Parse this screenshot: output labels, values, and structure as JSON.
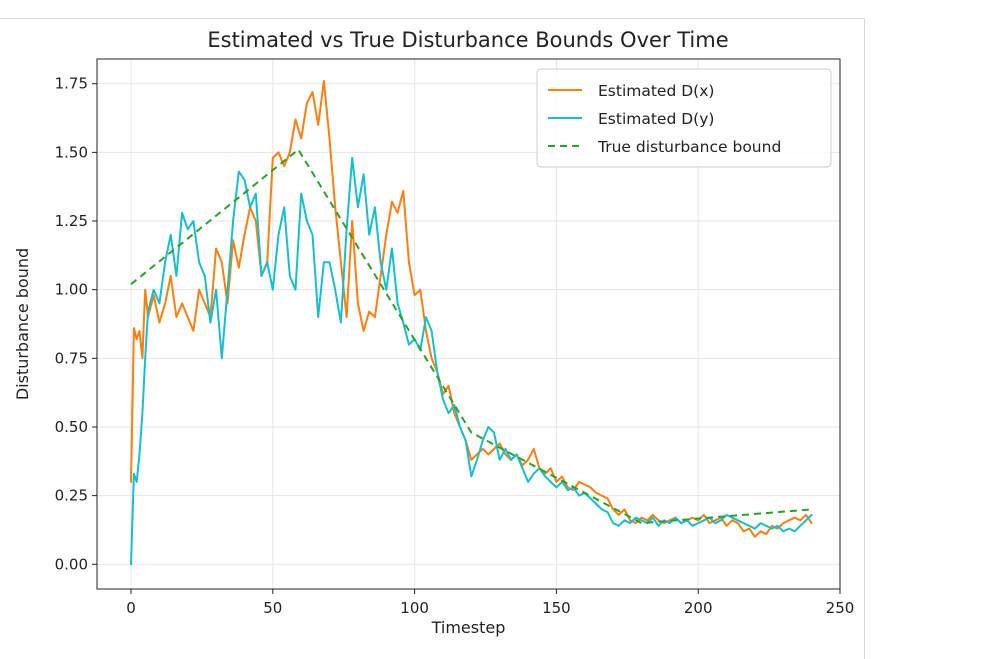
{
  "chart_data": {
    "type": "line",
    "title": "Estimated vs True Disturbance Bounds Over Time",
    "xlabel": "Timestep",
    "ylabel": "Disturbance bound",
    "xlim": [
      -12,
      250
    ],
    "ylim": [
      -0.09,
      1.84
    ],
    "xticks": [
      0,
      50,
      100,
      150,
      200,
      250
    ],
    "yticks": [
      0.0,
      0.25,
      0.5,
      0.75,
      1.0,
      1.25,
      1.5,
      1.75
    ],
    "ytick_labels": [
      "0.00",
      "0.25",
      "0.50",
      "0.75",
      "1.00",
      "1.25",
      "1.50",
      "1.75"
    ],
    "grid": true,
    "legend_position": "top-right",
    "series": [
      {
        "name": "Estimated D(x)",
        "color": "#ff7f0e",
        "style": "solid",
        "x": [
          0,
          1,
          2,
          3,
          4,
          5,
          6,
          8,
          10,
          12,
          14,
          16,
          18,
          20,
          22,
          24,
          26,
          28,
          30,
          32,
          34,
          36,
          38,
          40,
          42,
          44,
          46,
          48,
          50,
          52,
          54,
          56,
          58,
          60,
          62,
          64,
          66,
          68,
          70,
          72,
          74,
          76,
          78,
          80,
          82,
          84,
          86,
          88,
          90,
          92,
          94,
          96,
          98,
          100,
          102,
          104,
          106,
          108,
          110,
          112,
          114,
          116,
          118,
          120,
          122,
          124,
          126,
          128,
          130,
          132,
          134,
          136,
          138,
          140,
          142,
          144,
          146,
          148,
          150,
          152,
          154,
          156,
          158,
          160,
          162,
          164,
          166,
          168,
          170,
          172,
          174,
          176,
          178,
          180,
          182,
          184,
          186,
          188,
          190,
          192,
          194,
          196,
          198,
          200,
          202,
          204,
          206,
          208,
          210,
          212,
          214,
          216,
          218,
          220,
          222,
          224,
          226,
          228,
          230,
          232,
          234,
          236,
          238,
          240
        ],
        "y": [
          0.3,
          0.86,
          0.82,
          0.85,
          0.75,
          1.0,
          0.9,
          0.98,
          0.88,
          0.95,
          1.05,
          0.9,
          0.95,
          0.9,
          0.85,
          1.0,
          0.95,
          0.9,
          1.15,
          1.1,
          0.95,
          1.18,
          1.08,
          1.2,
          1.3,
          1.25,
          1.05,
          1.1,
          1.48,
          1.5,
          1.45,
          1.5,
          1.62,
          1.55,
          1.68,
          1.72,
          1.6,
          1.76,
          1.55,
          1.3,
          1.1,
          0.9,
          1.25,
          0.95,
          0.85,
          0.92,
          0.9,
          1.05,
          1.2,
          1.32,
          1.28,
          1.36,
          1.1,
          0.98,
          1.0,
          0.85,
          0.75,
          0.7,
          0.62,
          0.65,
          0.55,
          0.5,
          0.45,
          0.38,
          0.4,
          0.42,
          0.4,
          0.42,
          0.44,
          0.4,
          0.38,
          0.4,
          0.36,
          0.38,
          0.42,
          0.35,
          0.33,
          0.35,
          0.3,
          0.32,
          0.28,
          0.27,
          0.3,
          0.29,
          0.28,
          0.26,
          0.25,
          0.24,
          0.2,
          0.18,
          0.2,
          0.16,
          0.15,
          0.17,
          0.16,
          0.18,
          0.16,
          0.15,
          0.16,
          0.17,
          0.15,
          0.16,
          0.17,
          0.16,
          0.18,
          0.15,
          0.16,
          0.17,
          0.14,
          0.16,
          0.15,
          0.12,
          0.13,
          0.1,
          0.12,
          0.11,
          0.14,
          0.13,
          0.15,
          0.16,
          0.17,
          0.16,
          0.18,
          0.15
        ]
      },
      {
        "name": "Estimated D(y)",
        "color": "#17becf",
        "style": "solid",
        "x": [
          0,
          1,
          2,
          3,
          4,
          5,
          6,
          8,
          10,
          12,
          14,
          16,
          18,
          20,
          22,
          24,
          26,
          28,
          30,
          32,
          34,
          36,
          38,
          40,
          42,
          44,
          46,
          48,
          50,
          52,
          54,
          56,
          58,
          60,
          62,
          64,
          66,
          68,
          70,
          72,
          74,
          76,
          78,
          80,
          82,
          84,
          86,
          88,
          90,
          92,
          94,
          96,
          98,
          100,
          102,
          104,
          106,
          108,
          110,
          112,
          114,
          116,
          118,
          120,
          122,
          124,
          126,
          128,
          130,
          132,
          134,
          136,
          138,
          140,
          142,
          144,
          146,
          148,
          150,
          152,
          154,
          156,
          158,
          160,
          162,
          164,
          166,
          168,
          170,
          172,
          174,
          176,
          178,
          180,
          182,
          184,
          186,
          188,
          190,
          192,
          194,
          196,
          198,
          200,
          202,
          204,
          206,
          208,
          210,
          212,
          214,
          216,
          218,
          220,
          222,
          224,
          226,
          228,
          230,
          232,
          234,
          236,
          238,
          240
        ],
        "y": [
          0.0,
          0.33,
          0.3,
          0.4,
          0.55,
          0.75,
          0.92,
          1.0,
          0.95,
          1.1,
          1.2,
          1.05,
          1.28,
          1.22,
          1.25,
          1.1,
          1.05,
          0.88,
          1.0,
          0.75,
          1.0,
          1.25,
          1.43,
          1.4,
          1.3,
          1.35,
          1.05,
          1.1,
          1.0,
          1.2,
          1.3,
          1.05,
          1.0,
          1.35,
          1.25,
          1.2,
          0.9,
          1.1,
          1.1,
          1.0,
          0.88,
          1.22,
          1.48,
          1.3,
          1.42,
          1.2,
          1.3,
          1.1,
          1.0,
          1.15,
          0.95,
          0.88,
          0.8,
          0.82,
          0.78,
          0.9,
          0.85,
          0.7,
          0.6,
          0.55,
          0.58,
          0.5,
          0.45,
          0.32,
          0.38,
          0.45,
          0.5,
          0.48,
          0.38,
          0.42,
          0.38,
          0.4,
          0.35,
          0.3,
          0.33,
          0.35,
          0.32,
          0.3,
          0.28,
          0.3,
          0.27,
          0.28,
          0.25,
          0.26,
          0.24,
          0.22,
          0.2,
          0.19,
          0.15,
          0.14,
          0.16,
          0.15,
          0.17,
          0.16,
          0.15,
          0.17,
          0.14,
          0.16,
          0.15,
          0.17,
          0.15,
          0.16,
          0.14,
          0.15,
          0.16,
          0.17,
          0.15,
          0.16,
          0.18,
          0.17,
          0.16,
          0.15,
          0.14,
          0.13,
          0.15,
          0.14,
          0.13,
          0.14,
          0.12,
          0.13,
          0.12,
          0.14,
          0.16,
          0.18
        ]
      },
      {
        "name": "True disturbance bound",
        "color": "#2ca02c",
        "style": "dashed",
        "x": [
          0,
          59,
          120,
          180,
          240
        ],
        "y": [
          1.02,
          1.51,
          0.48,
          0.15,
          0.2
        ]
      }
    ]
  }
}
